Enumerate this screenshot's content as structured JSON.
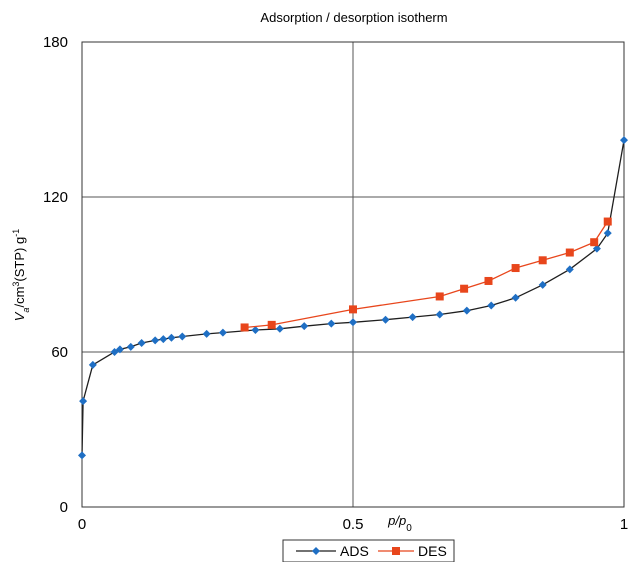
{
  "chart_data": {
    "type": "line",
    "title": "Adsorption / desorption isotherm",
    "ylabel_main": "V",
    "ylabel_sub": "a",
    "ylabel_rest": "/cm",
    "ylabel_sup1": "3",
    "ylabel_mid": "(STP) g",
    "ylabel_sup2": "-1",
    "xlabel_main": "p/p",
    "xlabel_sub": "0",
    "xlim": [
      0,
      1
    ],
    "ylim": [
      0,
      180
    ],
    "x_ticks": [
      0,
      0.5,
      1
    ],
    "x_tick_labels": [
      "0",
      "0.5",
      "1"
    ],
    "y_ticks": [
      0,
      60,
      120,
      180
    ],
    "y_tick_labels": [
      "0",
      "60",
      "120",
      "180"
    ],
    "grid": true,
    "legend_position": "bottom",
    "series": [
      {
        "name": "ADS",
        "color": "#1f6fc4",
        "marker": "diamond",
        "x": [
          0.0,
          0.002,
          0.02,
          0.06,
          0.07,
          0.09,
          0.11,
          0.135,
          0.15,
          0.165,
          0.185,
          0.23,
          0.26,
          0.32,
          0.365,
          0.41,
          0.46,
          0.5,
          0.56,
          0.61,
          0.66,
          0.71,
          0.755,
          0.8,
          0.85,
          0.9,
          0.95,
          0.97,
          1.0
        ],
        "y": [
          20,
          41,
          55,
          60,
          61,
          62,
          63.5,
          64.5,
          65,
          65.5,
          66,
          67,
          67.5,
          68.5,
          69,
          70,
          71,
          71.5,
          72.5,
          73.5,
          74.5,
          76,
          78,
          81,
          86,
          92,
          100,
          106,
          142
        ]
      },
      {
        "name": "DES",
        "color": "#e8461c",
        "marker": "square",
        "x": [
          0.3,
          0.35,
          0.5,
          0.66,
          0.705,
          0.75,
          0.8,
          0.85,
          0.9,
          0.945,
          0.97
        ],
        "y": [
          69.5,
          70.5,
          76.5,
          81.5,
          84.5,
          87.5,
          92.5,
          95.5,
          98.5,
          102.5,
          110.5
        ]
      }
    ]
  }
}
